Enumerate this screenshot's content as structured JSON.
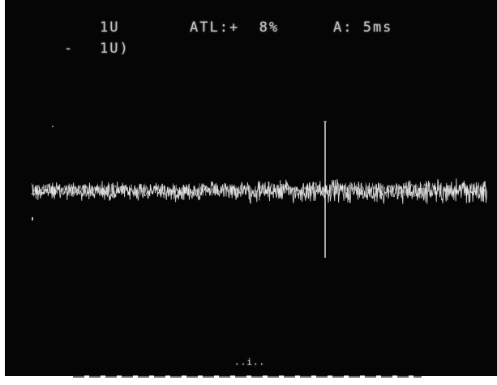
{
  "readout": {
    "channel_top": "1U",
    "channel_bottom": "1U)",
    "threshold_label": "ATL:+  8%",
    "timebase_label": "A: 5ms",
    "marker_left": "-",
    "bottom_marker": "..i.."
  },
  "colors": {
    "screen_background": "#050505",
    "trace_color": "#f2f2f2",
    "text_color": "#d8d8d8"
  }
}
